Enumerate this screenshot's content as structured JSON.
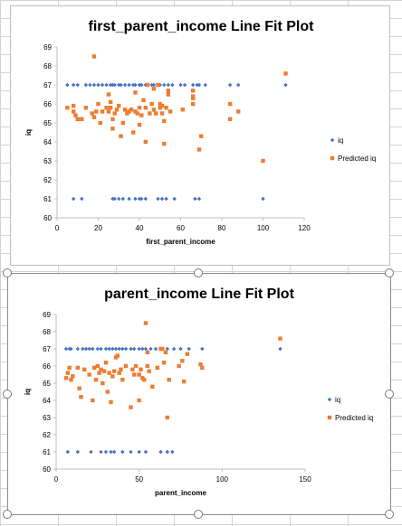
{
  "chart_data": [
    {
      "type": "scatter",
      "title": "first_parent_income Line Fit  Plot",
      "xlabel": "first_parent_income",
      "ylabel": "iq",
      "xlim": [
        0,
        120
      ],
      "ylim": [
        60,
        69
      ],
      "xticks": [
        "0",
        "20",
        "40",
        "60",
        "80",
        "100",
        "120"
      ],
      "yticks": [
        "60",
        "61",
        "62",
        "63",
        "64",
        "65",
        "66",
        "67",
        "68",
        "69"
      ],
      "grid": false,
      "legend_position": "right",
      "series": [
        {
          "name": "iq",
          "color": "#4472c4",
          "marker": "diamond",
          "points": [
            [
              5,
              67
            ],
            [
              8,
              67
            ],
            [
              10,
              67
            ],
            [
              14,
              67
            ],
            [
              16,
              67
            ],
            [
              18,
              67
            ],
            [
              20,
              67
            ],
            [
              22,
              67
            ],
            [
              24,
              67
            ],
            [
              26,
              67
            ],
            [
              27,
              67
            ],
            [
              28,
              67
            ],
            [
              30,
              67
            ],
            [
              31,
              67
            ],
            [
              33,
              67
            ],
            [
              35,
              67
            ],
            [
              37,
              67
            ],
            [
              38,
              67
            ],
            [
              40,
              67
            ],
            [
              41,
              67
            ],
            [
              43,
              67
            ],
            [
              44,
              67
            ],
            [
              46,
              67
            ],
            [
              47,
              67
            ],
            [
              49,
              67
            ],
            [
              50,
              67
            ],
            [
              52,
              67
            ],
            [
              54,
              67
            ],
            [
              56,
              67
            ],
            [
              60,
              67
            ],
            [
              62,
              67
            ],
            [
              66,
              67
            ],
            [
              68,
              67
            ],
            [
              69,
              67
            ],
            [
              72,
              67
            ],
            [
              84,
              67
            ],
            [
              88,
              67
            ],
            [
              111,
              67
            ],
            [
              8,
              61
            ],
            [
              12,
              61
            ],
            [
              27,
              61
            ],
            [
              28,
              61
            ],
            [
              30,
              61
            ],
            [
              32,
              61
            ],
            [
              35,
              61
            ],
            [
              38,
              61
            ],
            [
              40,
              61
            ],
            [
              41,
              61
            ],
            [
              43,
              61
            ],
            [
              49,
              61
            ],
            [
              51,
              61
            ],
            [
              53,
              61
            ],
            [
              57,
              61
            ],
            [
              67,
              61
            ],
            [
              69,
              61
            ],
            [
              100,
              61
            ]
          ]
        },
        {
          "name": "Predicted iq",
          "color": "#ed7d31",
          "marker": "square",
          "points": [
            [
              5,
              65.8
            ],
            [
              8,
              65.9
            ],
            [
              8,
              65.6
            ],
            [
              9,
              65.4
            ],
            [
              10,
              65.2
            ],
            [
              12,
              65.2
            ],
            [
              14,
              65.8
            ],
            [
              17,
              65.5
            ],
            [
              18,
              68.5
            ],
            [
              18,
              65.3
            ],
            [
              19,
              65.6
            ],
            [
              20,
              66.0
            ],
            [
              21,
              65.0
            ],
            [
              22,
              65.6
            ],
            [
              24,
              65.8
            ],
            [
              25,
              66.5
            ],
            [
              25,
              65.6
            ],
            [
              26,
              66.1
            ],
            [
              26,
              65.8
            ],
            [
              27,
              64.7
            ],
            [
              27,
              65.2
            ],
            [
              28,
              65.5
            ],
            [
              29,
              65.7
            ],
            [
              30,
              65.9
            ],
            [
              31,
              64.3
            ],
            [
              32,
              65.0
            ],
            [
              33,
              65.7
            ],
            [
              34,
              65.5
            ],
            [
              35,
              65.6
            ],
            [
              36,
              65.7
            ],
            [
              37,
              64.5
            ],
            [
              38,
              66.6
            ],
            [
              38,
              65.6
            ],
            [
              39,
              65.5
            ],
            [
              40,
              65.8
            ],
            [
              40,
              64.9
            ],
            [
              41,
              65.4
            ],
            [
              42,
              66.2
            ],
            [
              43,
              64.0
            ],
            [
              43,
              65.8
            ],
            [
              44,
              67.0
            ],
            [
              45,
              65.5
            ],
            [
              46,
              66.0
            ],
            [
              47,
              66.8
            ],
            [
              47,
              65.7
            ],
            [
              48,
              65.5
            ],
            [
              49,
              67.0
            ],
            [
              50,
              65.8
            ],
            [
              50,
              66.0
            ],
            [
              51,
              65.5
            ],
            [
              51,
              65.9
            ],
            [
              52,
              63.9
            ],
            [
              52,
              65.1
            ],
            [
              53,
              65.8
            ],
            [
              54,
              66.5
            ],
            [
              54,
              66.7
            ],
            [
              55,
              65.6
            ],
            [
              61,
              65.7
            ],
            [
              66,
              66.0
            ],
            [
              66,
              66.3
            ],
            [
              66,
              66.4
            ],
            [
              66,
              66.7
            ],
            [
              69,
              63.6
            ],
            [
              70,
              64.3
            ],
            [
              84,
              66.0
            ],
            [
              84,
              65.2
            ],
            [
              88,
              65.6
            ],
            [
              100,
              63.0
            ],
            [
              111,
              67.6
            ]
          ]
        }
      ]
    },
    {
      "type": "scatter",
      "title": "parent_income Line Fit  Plot",
      "xlabel": "parent_income",
      "ylabel": "iq",
      "xlim": [
        0,
        150
      ],
      "ylim": [
        60,
        69
      ],
      "xticks": [
        "0",
        "50",
        "100",
        "150"
      ],
      "yticks": [
        "60",
        "61",
        "62",
        "63",
        "64",
        "65",
        "66",
        "67",
        "68",
        "69"
      ],
      "grid": false,
      "legend_position": "right",
      "series": [
        {
          "name": "iq",
          "color": "#4472c4",
          "marker": "diamond",
          "points": [
            [
              6,
              67
            ],
            [
              8,
              67
            ],
            [
              9,
              67
            ],
            [
              13,
              67
            ],
            [
              16,
              67
            ],
            [
              18,
              67
            ],
            [
              20,
              67
            ],
            [
              22,
              67
            ],
            [
              25,
              67
            ],
            [
              27,
              67
            ],
            [
              30,
              67
            ],
            [
              32,
              67
            ],
            [
              34,
              67
            ],
            [
              36,
              67
            ],
            [
              38,
              67
            ],
            [
              40,
              67
            ],
            [
              42,
              67
            ],
            [
              45,
              67
            ],
            [
              47,
              67
            ],
            [
              50,
              67
            ],
            [
              52,
              67
            ],
            [
              54,
              67
            ],
            [
              57,
              67
            ],
            [
              60,
              67
            ],
            [
              64,
              67
            ],
            [
              67,
              67
            ],
            [
              71,
              67
            ],
            [
              75,
              67
            ],
            [
              80,
              67
            ],
            [
              88,
              67
            ],
            [
              135,
              67
            ],
            [
              7,
              61
            ],
            [
              13,
              61
            ],
            [
              21,
              61
            ],
            [
              27,
              61
            ],
            [
              30,
              61
            ],
            [
              33,
              61
            ],
            [
              35,
              61
            ],
            [
              40,
              61
            ],
            [
              45,
              61
            ],
            [
              50,
              61
            ],
            [
              54,
              61
            ],
            [
              63,
              61
            ],
            [
              67,
              61
            ],
            [
              70,
              61
            ]
          ]
        },
        {
          "name": "Predicted iq",
          "color": "#ed7d31",
          "marker": "square",
          "points": [
            [
              6,
              65.3
            ],
            [
              7,
              65.6
            ],
            [
              8,
              65.9
            ],
            [
              9,
              65.2
            ],
            [
              10,
              65.4
            ],
            [
              13,
              65.9
            ],
            [
              14,
              64.7
            ],
            [
              15,
              64.2
            ],
            [
              17,
              65.8
            ],
            [
              20,
              65.5
            ],
            [
              22,
              64.0
            ],
            [
              23,
              65.9
            ],
            [
              24,
              65.2
            ],
            [
              25,
              66.0
            ],
            [
              26,
              65.6
            ],
            [
              27,
              65.8
            ],
            [
              28,
              65.0
            ],
            [
              29,
              65.7
            ],
            [
              30,
              66.2
            ],
            [
              31,
              64.5
            ],
            [
              32,
              65.6
            ],
            [
              33,
              63.9
            ],
            [
              34,
              65.4
            ],
            [
              35,
              65.7
            ],
            [
              36,
              66.5
            ],
            [
              37,
              66.6
            ],
            [
              38,
              65.6
            ],
            [
              39,
              65.8
            ],
            [
              40,
              65.2
            ],
            [
              42,
              66.0
            ],
            [
              45,
              63.6
            ],
            [
              46,
              65.8
            ],
            [
              47,
              65.5
            ],
            [
              48,
              66.0
            ],
            [
              50,
              64.0
            ],
            [
              50,
              65.5
            ],
            [
              51,
              65.8
            ],
            [
              52,
              65.3
            ],
            [
              53,
              65.2
            ],
            [
              54,
              68.5
            ],
            [
              55,
              66.8
            ],
            [
              55,
              66.0
            ],
            [
              56,
              65.7
            ],
            [
              58,
              64.8
            ],
            [
              61,
              65.9
            ],
            [
              63,
              67.0
            ],
            [
              64,
              67.0
            ],
            [
              65,
              66.2
            ],
            [
              66,
              66.8
            ],
            [
              67,
              63.0
            ],
            [
              68,
              65.2
            ],
            [
              74,
              66.0
            ],
            [
              76,
              66.3
            ],
            [
              77,
              65.1
            ],
            [
              79,
              66.7
            ],
            [
              87,
              66.1
            ],
            [
              88,
              65.9
            ],
            [
              135,
              67.6
            ]
          ]
        }
      ]
    }
  ]
}
